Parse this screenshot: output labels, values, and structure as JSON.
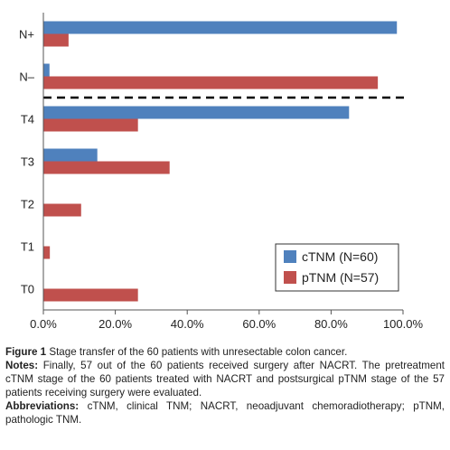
{
  "chart_data": {
    "type": "bar",
    "orientation": "horizontal",
    "categories": [
      "N+",
      "N–",
      "T4",
      "T3",
      "T2",
      "T1",
      "T0"
    ],
    "series": [
      {
        "name": "cTNM (N=60)",
        "color": "#4f81bd",
        "values": [
          98.3,
          1.7,
          85.0,
          15.0,
          0.0,
          0.0,
          0.0
        ]
      },
      {
        "name": "pTNM (N=57)",
        "color": "#c0504d",
        "values": [
          7.0,
          93.0,
          26.3,
          35.1,
          10.5,
          1.8,
          26.3
        ]
      }
    ],
    "xlim": [
      0,
      100
    ],
    "xticks": [
      "0.0%",
      "20.0%",
      "40.0%",
      "60.0%",
      "80.0%",
      "100.0%"
    ],
    "divider": "dashed line between N– and T4",
    "legend_position": "bottom-right",
    "grid": false
  },
  "caption": {
    "figure_label": "Figure 1",
    "figure_text": "Stage transfer of the 60 patients with unresectable colon cancer.",
    "notes_label": "Notes:",
    "notes_text": "Finally, 57 out of the 60 patients received surgery after NACRT. The pretreatment cTNM stage of the 60 patients treated with NACRT and postsurgical pTNM stage of the 57 patients receiving surgery were evaluated.",
    "abbrev_label": "Abbreviations:",
    "abbrev_text": "cTNM, clinical TNM; NACRT, neoadjuvant chemoradiotherapy; pTNM, pathologic TNM."
  }
}
